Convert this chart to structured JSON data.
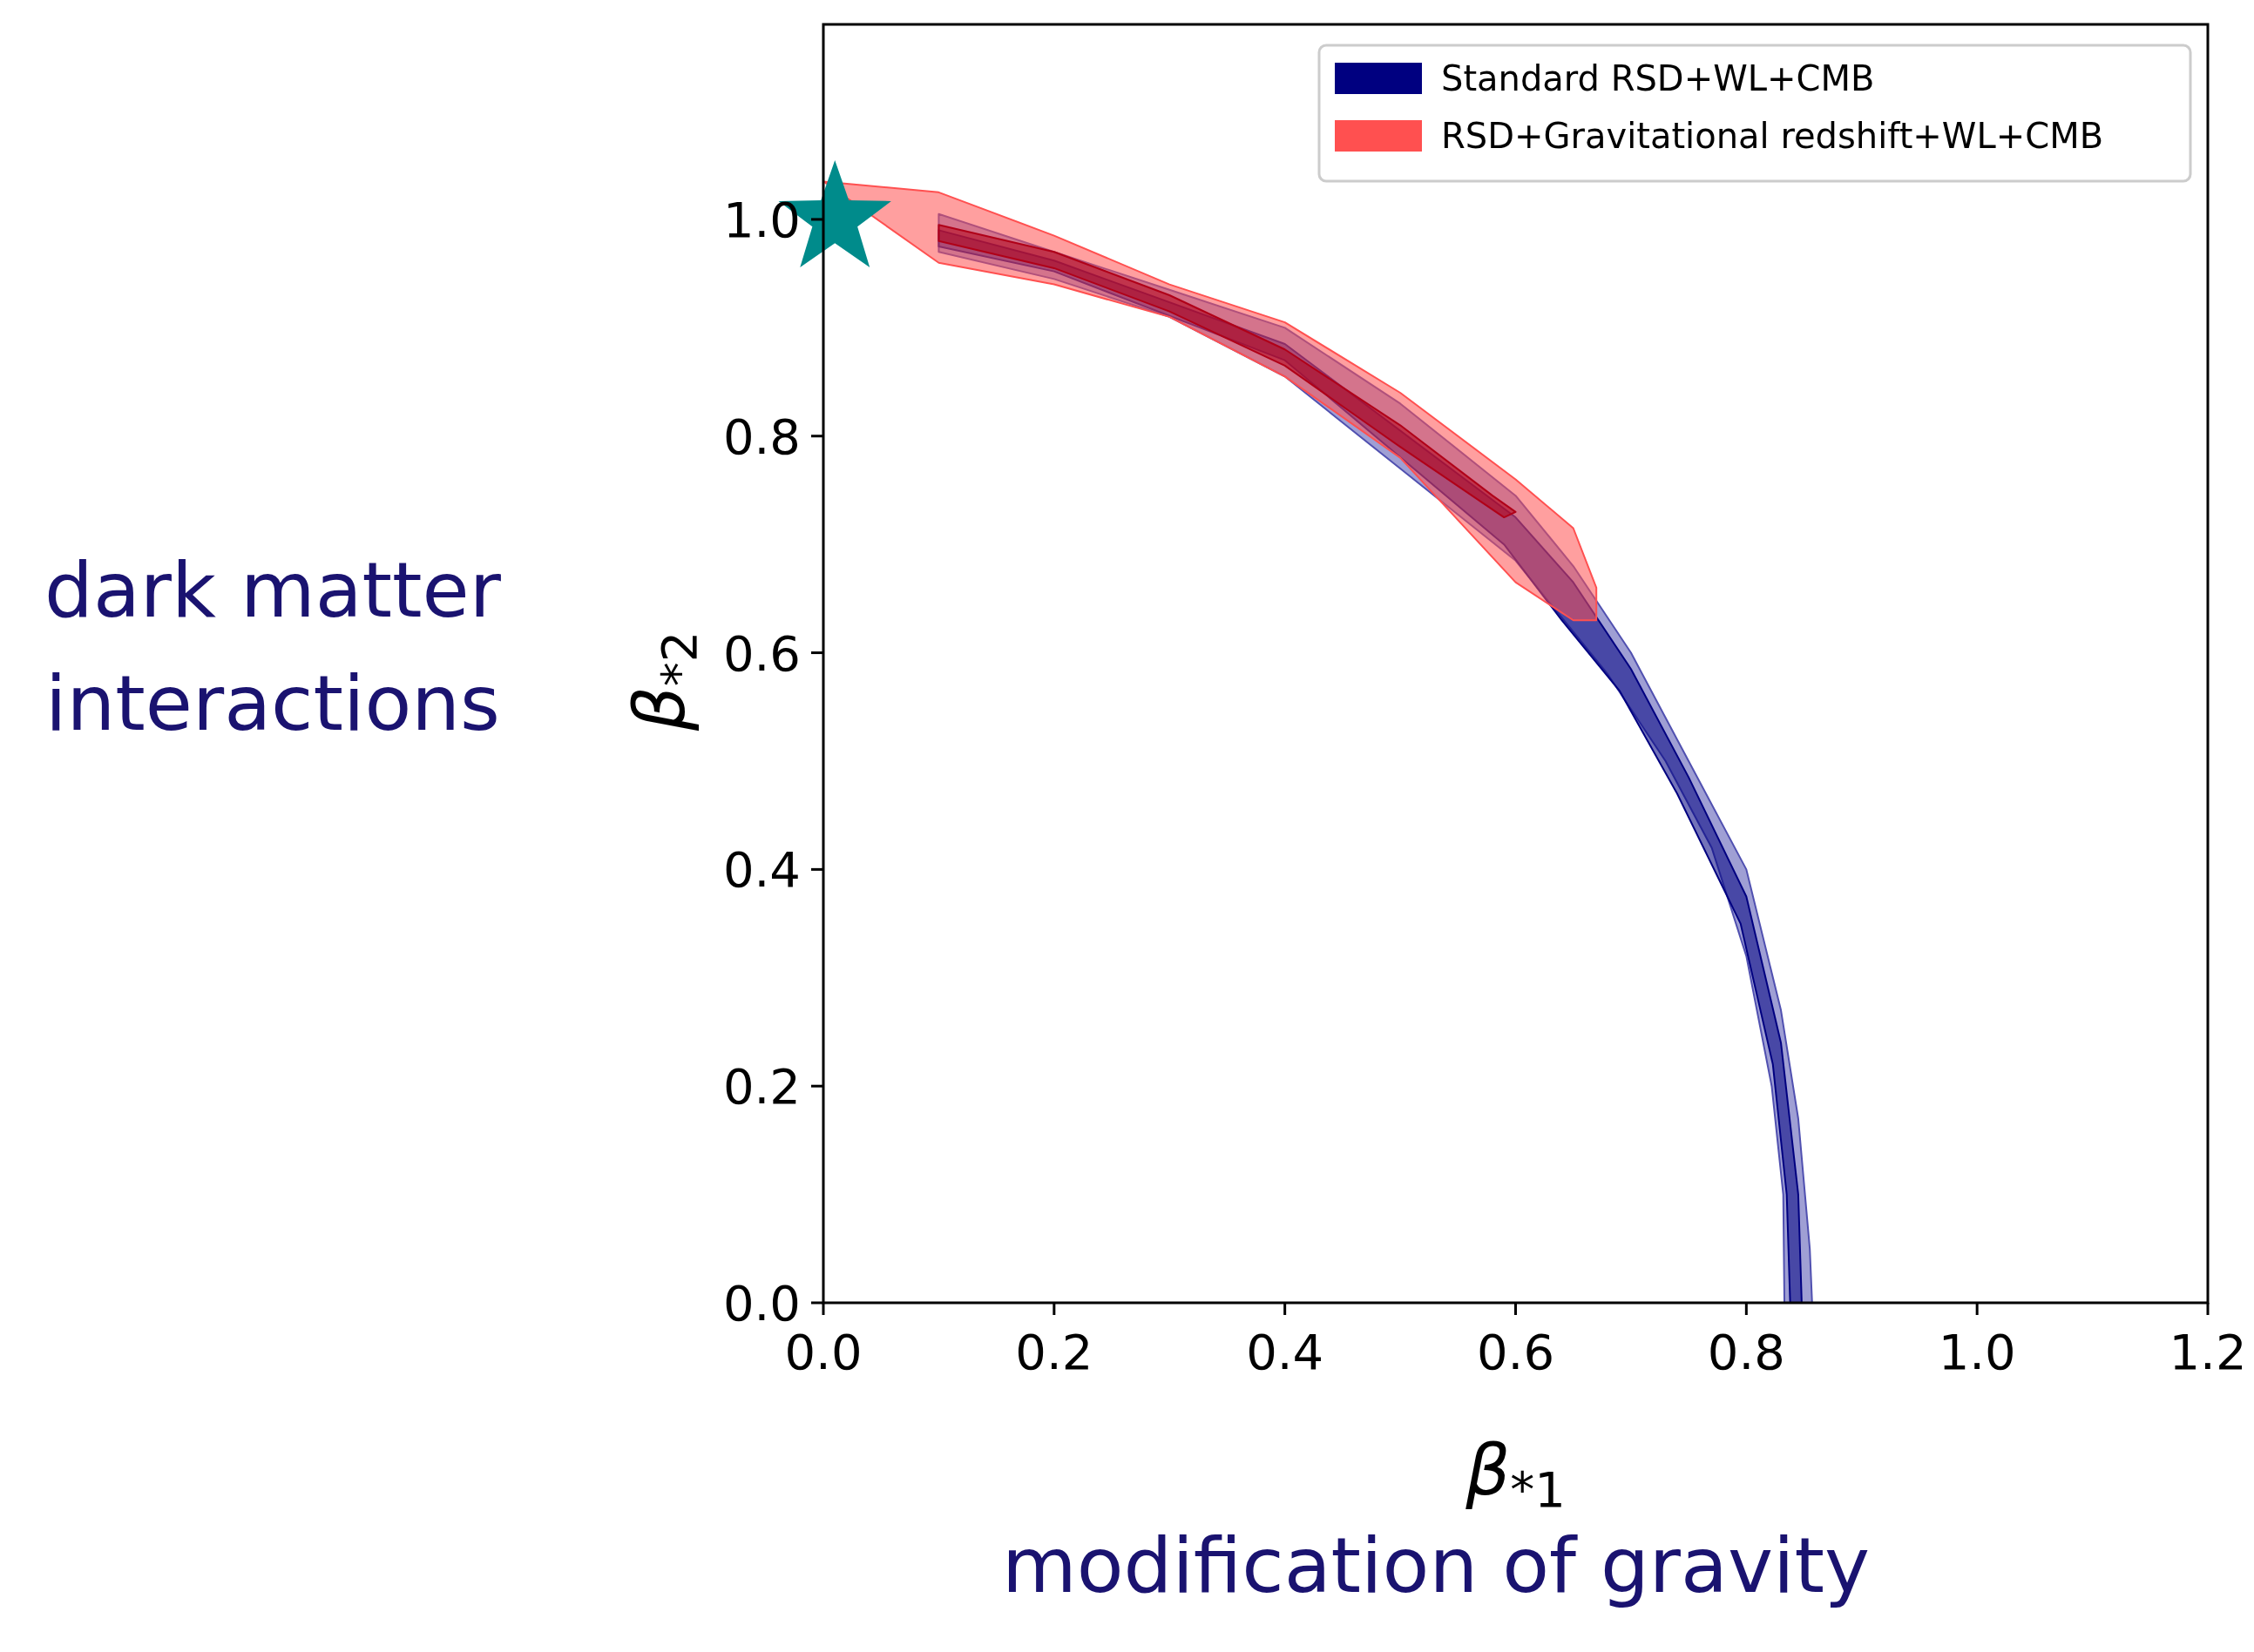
{
  "chart_data": {
    "type": "area",
    "xlabel": "β$_{*1}$",
    "ylabel": "β$_{*2}$",
    "xlim": [
      0,
      1.2
    ],
    "ylim": [
      0,
      1.18
    ],
    "xticks": [
      {
        "value": 0,
        "label": "0.0"
      },
      0.2,
      0.4,
      0.6,
      0.8,
      {
        "value": 1,
        "label": "1.0"
      },
      1.2
    ],
    "yticks": [
      {
        "value": 0,
        "label": "0.0"
      },
      0.2,
      0.4,
      0.6,
      0.8,
      {
        "value": 1,
        "label": "1.0"
      }
    ],
    "legend": "top right",
    "grid": false,
    "annotations": [
      "dark matter interactions",
      "modification of gravity"
    ],
    "series": [
      {
        "color": "#5050b0",
        "x": [
          0.1,
          0.2,
          0.3,
          0.4,
          0.5,
          0.6,
          0.65,
          0.7,
          0.75,
          0.8,
          0.83,
          0.845,
          0.855,
          0.857,
          0.833,
          0.832,
          0.822,
          0.8,
          0.77,
          0.73,
          0.68,
          0.6,
          0.5,
          0.4,
          0.3,
          0.2,
          0.1
        ],
        "values": [
          1.005,
          0.97,
          0.935,
          0.9,
          0.83,
          0.745,
          0.68,
          0.6,
          0.5,
          0.4,
          0.27,
          0.17,
          0.05,
          0,
          0,
          0.1,
          0.2,
          0.32,
          0.42,
          0.5,
          0.58,
          0.685,
          0.77,
          0.855,
          0.91,
          0.945,
          0.97
        ]
      },
      {
        "name": "Standard RSD+WL+CMB",
        "color": "#000080",
        "x": [
          0.1,
          0.2,
          0.4,
          0.6,
          0.65,
          0.7,
          0.75,
          0.8,
          0.83,
          0.845,
          0.848,
          0.838,
          0.835,
          0.823,
          0.795,
          0.74,
          0.69,
          0.64,
          0.59,
          0.4,
          0.2,
          0.1
        ],
        "values": [
          0.99,
          0.962,
          0.885,
          0.725,
          0.665,
          0.585,
          0.485,
          0.375,
          0.24,
          0.1,
          0,
          0,
          0.1,
          0.22,
          0.35,
          0.47,
          0.565,
          0.63,
          0.7,
          0.87,
          0.952,
          0.975
        ]
      },
      {
        "name": "RSD+Gravitational redshift+WL+CMB",
        "color": "#ff5050",
        "x": [
          0,
          0.1,
          0.2,
          0.3,
          0.4,
          0.5,
          0.6,
          0.65,
          0.67,
          0.67,
          0.65,
          0.6,
          0.5,
          0.4,
          0.3,
          0.2,
          0.1
        ],
        "values": [
          1.035,
          1.025,
          0.985,
          0.94,
          0.905,
          0.84,
          0.76,
          0.715,
          0.66,
          0.63,
          0.63,
          0.665,
          0.78,
          0.855,
          0.91,
          0.94,
          0.96
        ]
      },
      {
        "color": "#b00018",
        "x": [
          0.1,
          0.2,
          0.3,
          0.4,
          0.5,
          0.58,
          0.6,
          0.59,
          0.5,
          0.4,
          0.3,
          0.2,
          0.1
        ],
        "values": [
          0.995,
          0.97,
          0.93,
          0.88,
          0.81,
          0.745,
          0.73,
          0.725,
          0.79,
          0.865,
          0.915,
          0.955,
          0.98
        ]
      },
      {
        "type": "scatter",
        "marker": "star",
        "color": "#008b8b",
        "x": [
          0.01
        ],
        "values": [
          1.0
        ]
      }
    ]
  }
}
